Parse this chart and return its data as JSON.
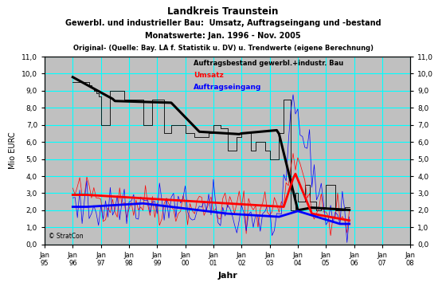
{
  "title1": "Landkreis Traunstein",
  "title2": "Gewerbl. und industrieller Bau:  Umsatz, Auftragseingang und -bestand",
  "title3": "Monatswerte: Jan. 1996 - Nov. 2005",
  "title4": "Original- (Quelle: Bay. LA f. Statistik u. DV) u. Trendwerte (eigene Berechnung)",
  "ylabel": "Mio EURC",
  "xlabel": "Jahr",
  "ylim": [
    0.0,
    11.0
  ],
  "yticks": [
    0.0,
    1.0,
    2.0,
    3.0,
    4.0,
    5.0,
    6.0,
    7.0,
    8.0,
    9.0,
    10.0,
    11.0
  ],
  "bg_color": "#c0c0c0",
  "grid_color": "#00ffff",
  "legend_text1": "Auftragsbestand gewerbl.+industr. Bau",
  "legend_text2": "Umsatz",
  "legend_text3": "Auftragseingang",
  "watermark": "© StratCon",
  "x_start_year": 1995,
  "x_end_year": 2008
}
